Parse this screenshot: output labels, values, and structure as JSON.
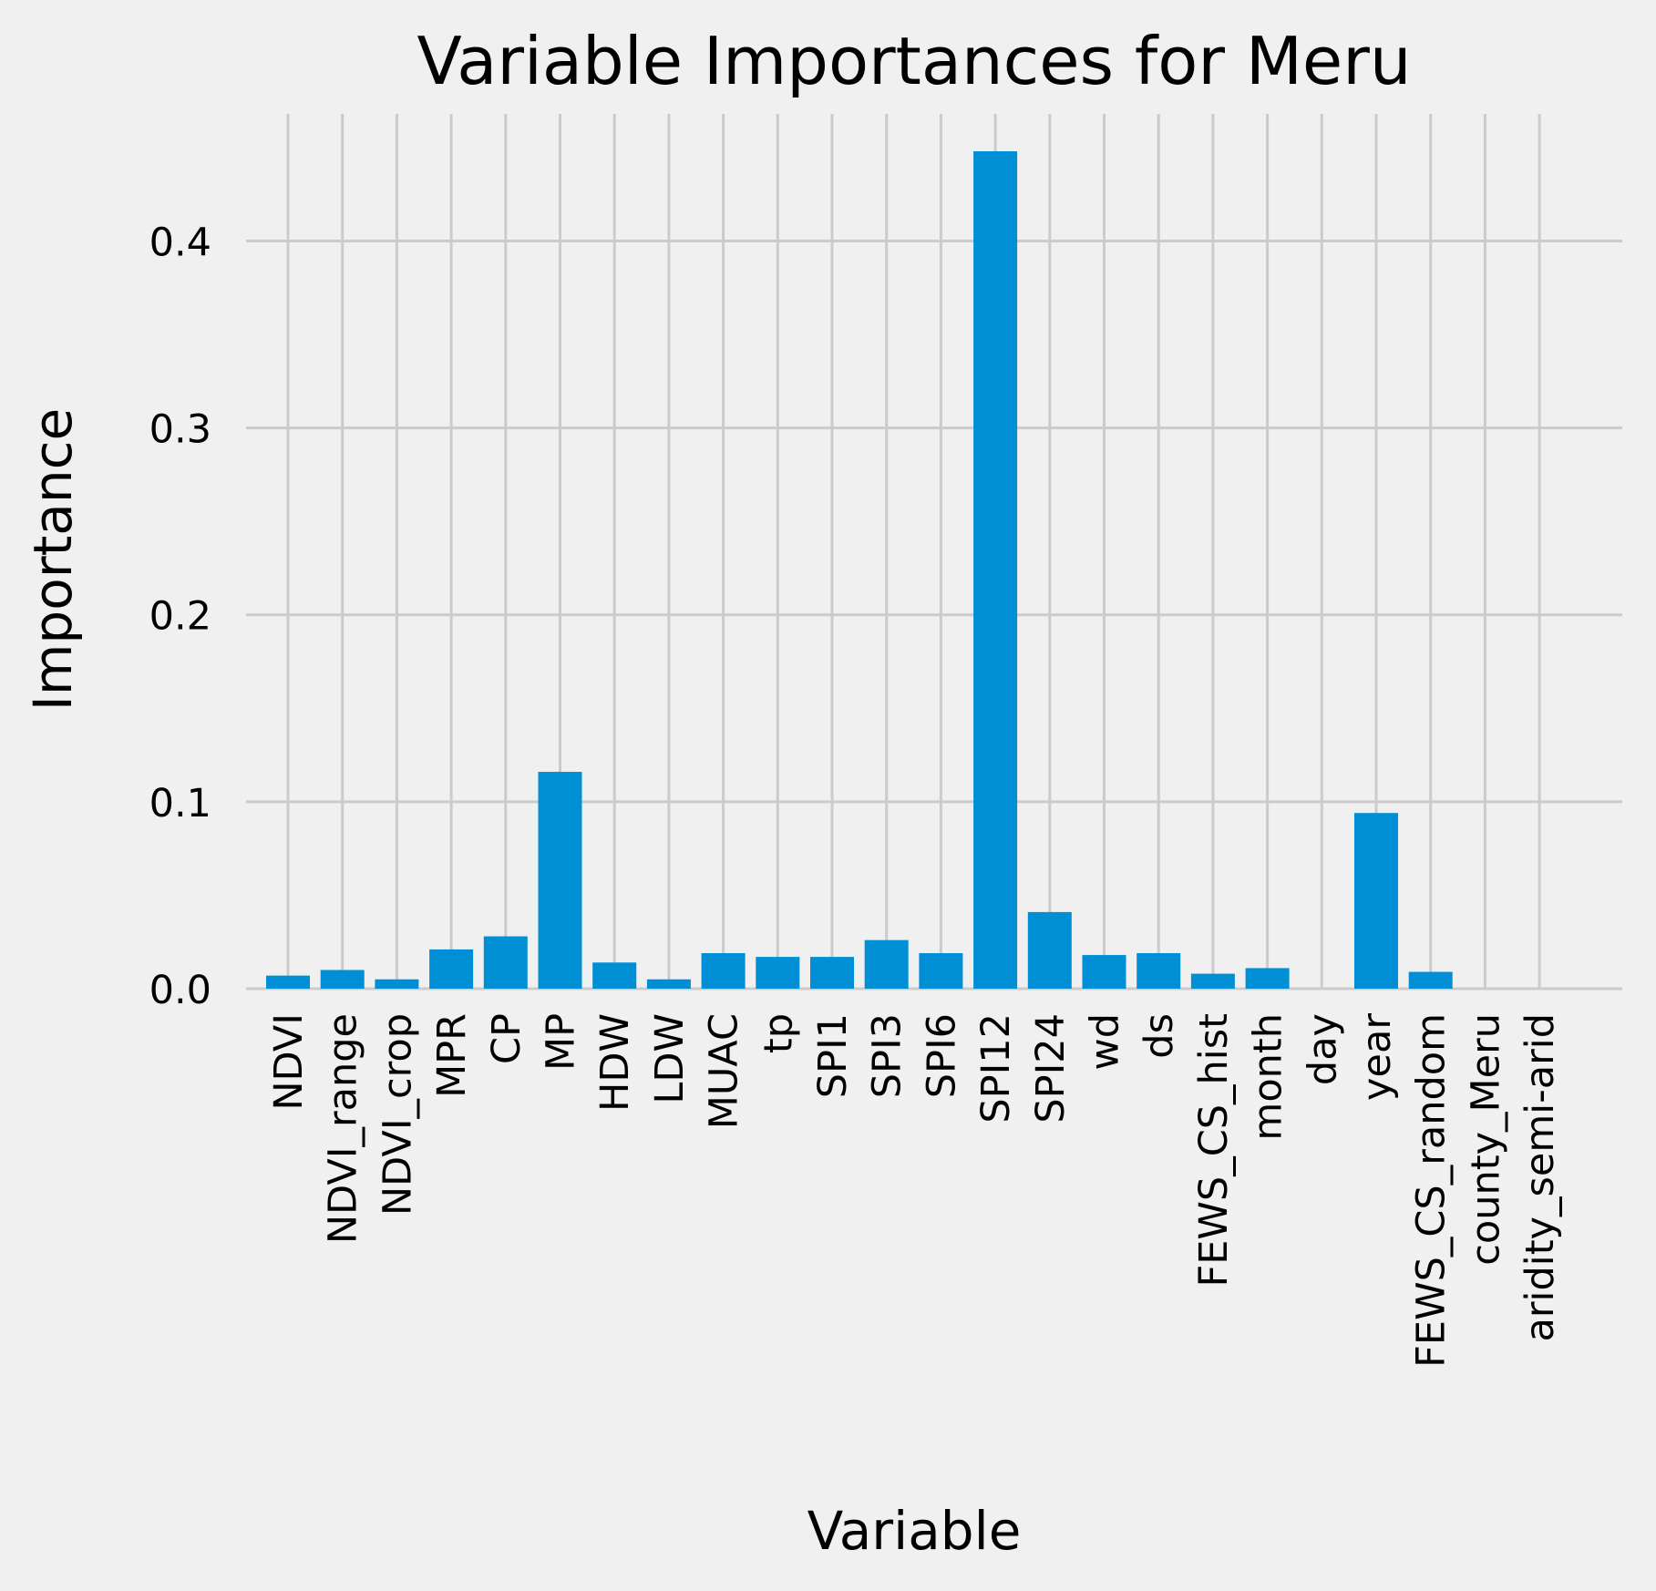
{
  "chart_data": {
    "type": "bar",
    "title": "Variable Importances for Meru",
    "xlabel": "Variable",
    "ylabel": "Importance",
    "categories": [
      "NDVI",
      "NDVI_range",
      "NDVI_crop",
      "MPR",
      "CP",
      "MP",
      "HDW",
      "LDW",
      "MUAC",
      "tp",
      "SPI1",
      "SPI3",
      "SPI6",
      "SPI12",
      "SPI24",
      "wd",
      "ds",
      "FEWS_CS_hist",
      "month",
      "day",
      "year",
      "FEWS_CS_random",
      "county_Meru",
      "aridity_semi-arid"
    ],
    "values": [
      0.007,
      0.01,
      0.005,
      0.021,
      0.028,
      0.116,
      0.014,
      0.005,
      0.019,
      0.017,
      0.017,
      0.026,
      0.019,
      0.448,
      0.041,
      0.018,
      0.019,
      0.008,
      0.011,
      0.0,
      0.094,
      0.009,
      0.0,
      0.0
    ],
    "yticks": [
      "0.0",
      "0.1",
      "0.2",
      "0.3",
      "0.4"
    ],
    "ylim": [
      0,
      0.468
    ],
    "grid": true,
    "bar_color": "#008fd5",
    "background_color": "#f0f0f0",
    "grid_color": "#cbcbcb"
  }
}
